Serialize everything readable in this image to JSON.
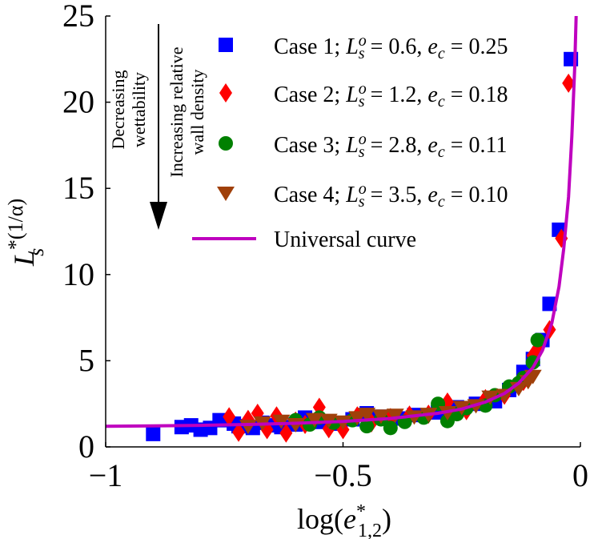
{
  "chart_data": {
    "type": "scatter",
    "xlabel": "log(e*1,2)",
    "ylabel": "Ls*(1/α)",
    "xlim": [
      -1,
      0
    ],
    "ylim": [
      0,
      25
    ],
    "xticks": [
      "−1",
      "−0.5",
      "0"
    ],
    "yticks": [
      "0",
      "5",
      "10",
      "15",
      "20",
      "25"
    ],
    "grid": false,
    "legend_position": "top-right",
    "annotations": {
      "left": [
        "Decreasing",
        "wettability"
      ],
      "right": [
        "Increasing relative",
        "wall density"
      ]
    },
    "series": [
      {
        "name": "Case 1; Ls^o = 0.6, e_c = 0.25",
        "marker": "square",
        "color": "#0000ff",
        "points": [
          [
            -0.9,
            0.75
          ],
          [
            -0.84,
            1.15
          ],
          [
            -0.82,
            1.25
          ],
          [
            -0.8,
            1.0
          ],
          [
            -0.78,
            1.1
          ],
          [
            -0.76,
            1.55
          ],
          [
            -0.73,
            1.35
          ],
          [
            -0.72,
            1.2
          ],
          [
            -0.69,
            1.1
          ],
          [
            -0.67,
            1.4
          ],
          [
            -0.65,
            1.25
          ],
          [
            -0.63,
            1.15
          ],
          [
            -0.6,
            1.3
          ],
          [
            -0.58,
            1.7
          ],
          [
            -0.55,
            1.45
          ],
          [
            -0.52,
            1.35
          ],
          [
            -0.48,
            1.6
          ],
          [
            -0.45,
            1.95
          ],
          [
            -0.42,
            1.75
          ],
          [
            -0.38,
            1.65
          ],
          [
            -0.35,
            1.85
          ],
          [
            -0.3,
            2.0
          ],
          [
            -0.26,
            2.3
          ],
          [
            -0.22,
            2.5
          ],
          [
            -0.18,
            2.65
          ],
          [
            -0.15,
            3.3
          ],
          [
            -0.12,
            4.35
          ],
          [
            -0.1,
            5.1
          ],
          [
            -0.08,
            6.2
          ],
          [
            -0.065,
            8.3
          ],
          [
            -0.045,
            12.6
          ],
          [
            -0.02,
            22.5
          ]
        ]
      },
      {
        "name": "Case 2; Ls^o = 1.2, e_c = 0.18",
        "marker": "diamond",
        "color": "#ff0000",
        "points": [
          [
            -0.74,
            1.75
          ],
          [
            -0.72,
            0.85
          ],
          [
            -0.7,
            1.6
          ],
          [
            -0.68,
            1.95
          ],
          [
            -0.66,
            1.0
          ],
          [
            -0.64,
            1.8
          ],
          [
            -0.62,
            0.8
          ],
          [
            -0.6,
            1.5
          ],
          [
            -0.58,
            1.3
          ],
          [
            -0.55,
            2.3
          ],
          [
            -0.53,
            1.05
          ],
          [
            -0.5,
            1.0
          ],
          [
            -0.47,
            1.8
          ],
          [
            -0.44,
            1.4
          ],
          [
            -0.4,
            1.7
          ],
          [
            -0.36,
            1.85
          ],
          [
            -0.32,
            1.9
          ],
          [
            -0.28,
            2.6
          ],
          [
            -0.24,
            2.1
          ],
          [
            -0.2,
            2.8
          ],
          [
            -0.16,
            3.0
          ],
          [
            -0.12,
            3.8
          ],
          [
            -0.1,
            5.3
          ],
          [
            -0.09,
            5.7
          ],
          [
            -0.065,
            6.8
          ],
          [
            -0.04,
            12.1
          ],
          [
            -0.025,
            21.1
          ]
        ]
      },
      {
        "name": "Case 3; Ls^o = 2.8, e_c = 0.11",
        "marker": "circle",
        "color": "#008000",
        "points": [
          [
            -0.6,
            1.55
          ],
          [
            -0.57,
            1.3
          ],
          [
            -0.55,
            1.7
          ],
          [
            -0.52,
            1.4
          ],
          [
            -0.48,
            1.55
          ],
          [
            -0.45,
            1.2
          ],
          [
            -0.42,
            1.6
          ],
          [
            -0.4,
            1.1
          ],
          [
            -0.37,
            1.45
          ],
          [
            -0.33,
            1.7
          ],
          [
            -0.3,
            2.5
          ],
          [
            -0.28,
            1.5
          ],
          [
            -0.26,
            1.9
          ],
          [
            -0.24,
            2.25
          ],
          [
            -0.2,
            2.4
          ],
          [
            -0.18,
            3.0
          ],
          [
            -0.15,
            3.5
          ],
          [
            -0.13,
            3.7
          ],
          [
            -0.12,
            4.0
          ],
          [
            -0.1,
            4.9
          ],
          [
            -0.09,
            6.2
          ]
        ]
      },
      {
        "name": "Case 4; Ls^o = 3.5, e_c = 0.10",
        "marker": "triangle-down",
        "color": "#a0400a",
        "points": [
          [
            -0.7,
            1.2
          ],
          [
            -0.67,
            1.4
          ],
          [
            -0.63,
            1.5
          ],
          [
            -0.6,
            1.3
          ],
          [
            -0.56,
            1.6
          ],
          [
            -0.53,
            1.55
          ],
          [
            -0.5,
            1.45
          ],
          [
            -0.47,
            1.7
          ],
          [
            -0.45,
            1.9
          ],
          [
            -0.42,
            1.8
          ],
          [
            -0.39,
            1.85
          ],
          [
            -0.35,
            1.75
          ],
          [
            -0.32,
            1.9
          ],
          [
            -0.28,
            2.0
          ],
          [
            -0.25,
            2.3
          ],
          [
            -0.22,
            2.4
          ],
          [
            -0.19,
            2.9
          ],
          [
            -0.16,
            3.0
          ],
          [
            -0.13,
            3.4
          ],
          [
            -0.11,
            3.8
          ],
          [
            -0.1,
            4.1
          ]
        ]
      },
      {
        "name": "Universal curve",
        "marker": "line",
        "color": "#bf00bf",
        "points": [
          [
            -1.0,
            1.2
          ],
          [
            -0.9,
            1.22
          ],
          [
            -0.8,
            1.25
          ],
          [
            -0.7,
            1.3
          ],
          [
            -0.6,
            1.37
          ],
          [
            -0.5,
            1.48
          ],
          [
            -0.4,
            1.65
          ],
          [
            -0.3,
            1.95
          ],
          [
            -0.25,
            2.2
          ],
          [
            -0.2,
            2.6
          ],
          [
            -0.16,
            3.1
          ],
          [
            -0.13,
            3.7
          ],
          [
            -0.1,
            4.6
          ],
          [
            -0.08,
            5.6
          ],
          [
            -0.06,
            7.2
          ],
          [
            -0.045,
            9.3
          ],
          [
            -0.035,
            11.5
          ],
          [
            -0.025,
            14.5
          ],
          [
            -0.018,
            18.0
          ],
          [
            -0.012,
            22.0
          ],
          [
            -0.009,
            25.0
          ]
        ]
      }
    ]
  }
}
